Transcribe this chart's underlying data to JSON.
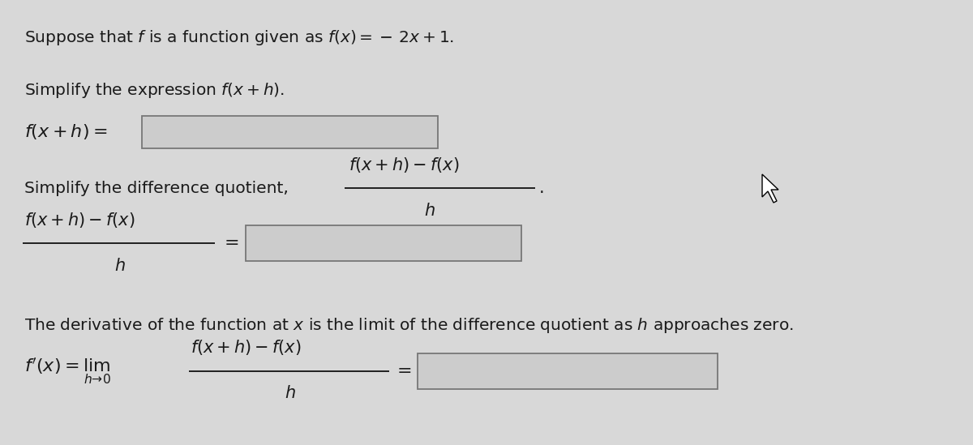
{
  "bg_color": "#d8d8d8",
  "text_color": "#1a1a1a",
  "box_facecolor": "#d0d0d0",
  "box_edgecolor": "#888888",
  "figsize": [
    12.0,
    5.49
  ],
  "dpi": 100,
  "line1": "Suppose that $f$ is a function given as $f(x) =\\,-\\,2x + 1$.",
  "line2": "Simplify the expression $f(x + h)$.",
  "line3_label": "$f(x + h) =$",
  "line4_text": "Simplify the difference quotient,",
  "line6_text": "The derivative of the function at $x$ is the limit of the difference quotient as $h$ approaches zero."
}
